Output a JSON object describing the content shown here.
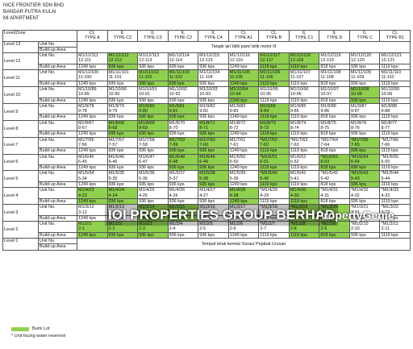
{
  "header": {
    "company": "NICE FRONTIER SDN BHD",
    "location": "BANDAR PUTRA KULAI",
    "project": "MI APARTMENT"
  },
  "table": {
    "corner": "Level/Zone",
    "row_labels": [
      "Unit No.",
      "Build-up Area"
    ],
    "columns": [
      [
        "CL",
        "TYPE A"
      ],
      [
        "IL",
        "TYPE C2"
      ],
      [
        "IL",
        "TYPE C3"
      ],
      [
        "IL",
        "TYPE C2"
      ],
      [
        "IL",
        "TYPE C4"
      ],
      [
        "CL",
        "TYPE A1"
      ],
      [
        "CL",
        "TYPE B"
      ],
      [
        "IL",
        "TYPE C1"
      ],
      [
        "IL",
        "TYPE D"
      ],
      [
        "IL",
        "TYPE C"
      ],
      [
        "CL",
        "TYPE B1"
      ]
    ],
    "top": {
      "level": "Level 13",
      "note": "Tangki air/ bilik pam/ bilik motor lif"
    },
    "levels": [
      {
        "level": "Level 12",
        "bumi": [
          false,
          true,
          false,
          false,
          false,
          false,
          true,
          true,
          false,
          false,
          false
        ],
        "cells": [
          [
            "M1/12/111",
            "12-111",
            "1249 kps"
          ],
          [
            "M1/12/112",
            "12-112",
            "936 kps"
          ],
          [
            "M1/12/113",
            "12-113",
            "936 kps"
          ],
          [
            "M1/12/114",
            "12-114",
            "936 kps"
          ],
          [
            "M1/12/115",
            "12-115",
            "936 kps"
          ],
          [
            "M1/12/116",
            "12-116",
            "1249 kps"
          ],
          [
            "M1/12/117",
            "12-117",
            "1119 kps"
          ],
          [
            "M1/12/118",
            "12-118",
            "1119 kps"
          ],
          [
            "M1/12/119",
            "12-119",
            "818 kps"
          ],
          [
            "M1/12/120",
            "12-120",
            "936 kps"
          ],
          [
            "M1/12/121",
            "12-121",
            "1119 kps"
          ]
        ]
      },
      {
        "level": "Level 11",
        "bumi": [
          false,
          false,
          true,
          true,
          false,
          true,
          true,
          false,
          false,
          false,
          false
        ],
        "cells": [
          [
            "M1/11/100",
            "11-100",
            "1249 kps"
          ],
          [
            "M1/11/101",
            "11-101",
            "936 kps"
          ],
          [
            "M1/11/102",
            "11-102",
            "936 kps"
          ],
          [
            "M1/11/103",
            "11-103",
            "936 kps"
          ],
          [
            "M1/11/104",
            "11-104",
            "936 kps"
          ],
          [
            "M1/11/105",
            "11-105",
            "1249 kps"
          ],
          [
            "M1/11/106",
            "11-106",
            "1119 kps"
          ],
          [
            "M1/11/107",
            "11-107",
            "1119 kps"
          ],
          [
            "M1/11/108",
            "11-108",
            "818 kps"
          ],
          [
            "M1/11/109",
            "11-109",
            "936 kps"
          ],
          [
            "M1/11/110",
            "11-110",
            "1119 kps"
          ]
        ]
      },
      {
        "level": "Level 10",
        "bumi": [
          false,
          false,
          false,
          false,
          false,
          true,
          false,
          false,
          false,
          true,
          false
        ],
        "cells": [
          [
            "M1/10/89",
            "10-89",
            "1249 kps"
          ],
          [
            "M1/10/90",
            "10-90",
            "936 kps"
          ],
          [
            "M1/10/91",
            "10-91",
            "936 kps"
          ],
          [
            "M1/10/92",
            "10-92",
            "936 kps"
          ],
          [
            "M1/10/93",
            "10-93",
            "936 kps"
          ],
          [
            "M1/10/94",
            "10-94",
            "1249 kps"
          ],
          [
            "M1/10/95",
            "10-95",
            "1119 kps"
          ],
          [
            "M1/10/96",
            "10-96",
            "1119 kps"
          ],
          [
            "M1/10/97",
            "10-97",
            "818 kps"
          ],
          [
            "M1/10/98",
            "10-98",
            "936 kps"
          ],
          [
            "M1/10/99",
            "10-99",
            "1119 kps"
          ]
        ]
      },
      {
        "level": "Level 9",
        "bumi": [
          false,
          false,
          true,
          true,
          false,
          false,
          true,
          false,
          false,
          false,
          false
        ],
        "cells": [
          [
            "M1/9/78",
            "9-78",
            "1249 kps"
          ],
          [
            "M1/9/79",
            "9-79",
            "936 kps"
          ],
          [
            "M1/9/80",
            "9-80",
            "936 kps"
          ],
          [
            "M1/9/81",
            "9-81",
            "936 kps"
          ],
          [
            "M1/9/82",
            "9-82",
            "936 kps"
          ],
          [
            "M1/9/83",
            "9-83",
            "1249 kps"
          ],
          [
            "M1/9/84",
            "9-84",
            "1119 kps"
          ],
          [
            "M1/9/85",
            "9-85",
            "1119 kps"
          ],
          [
            "M1/9/86",
            "9-86",
            "818 kps"
          ],
          [
            "M1/9/87",
            "9-87",
            "936 kps"
          ],
          [
            "M1/9/88",
            "9-88",
            "1119 kps"
          ]
        ]
      },
      {
        "level": "Level 8",
        "bumi": [
          false,
          true,
          true,
          false,
          true,
          false,
          true,
          false,
          false,
          false,
          false
        ],
        "cells": [
          [
            "M1/8/67",
            "8-67",
            "1249 kps"
          ],
          [
            "M1/8/68",
            "8-68",
            "936 kps"
          ],
          [
            "M1/8/69",
            "8-69",
            "936 kps"
          ],
          [
            "M1/8/70",
            "8-70",
            "936 kps"
          ],
          [
            "M1/8/71",
            "8-71",
            "936 kps"
          ],
          [
            "M1/8/72",
            "8-72",
            "1249 kps"
          ],
          [
            "M1/8/73",
            "8-73",
            "1119 kps"
          ],
          [
            "M1/8/74",
            "8-74",
            "1119 kps"
          ],
          [
            "M1/8/75",
            "8-75",
            "818 kps"
          ],
          [
            "M1/8/76",
            "8-76",
            "936 kps"
          ],
          [
            "M1/8/77",
            "8-77",
            "1119 kps"
          ]
        ]
      },
      {
        "level": "Level 7",
        "bumi": [
          false,
          false,
          false,
          true,
          true,
          false,
          true,
          false,
          false,
          true,
          false
        ],
        "cells": [
          [
            "M1/7/56",
            "7-56",
            "1249 kps"
          ],
          [
            "M1/7/57",
            "7-57",
            "936 kps"
          ],
          [
            "M1/7/58",
            "7-58",
            "936 kps"
          ],
          [
            "M1/7/59",
            "7-59",
            "936 kps"
          ],
          [
            "M1/7/60",
            "7-60",
            "936 kps"
          ],
          [
            "M1/7/61",
            "7-61",
            "1249 kps"
          ],
          [
            "*M1/7/62",
            "7-62",
            "1119 kps"
          ],
          [
            "*M1/7/63",
            "7-63",
            "1119 kps"
          ],
          [
            "*M1/7/64",
            "7-64",
            "818 kps"
          ],
          [
            "*M1/7/65",
            "7-65",
            "936 kps"
          ],
          [
            "*M1/7/66",
            "7-66",
            "1119 kps"
          ]
        ]
      },
      {
        "level": "Level 6",
        "bumi": [
          false,
          false,
          false,
          true,
          true,
          false,
          true,
          false,
          true,
          true,
          false
        ],
        "cells": [
          [
            "M1/6/45",
            "6-45",
            "1249 kps"
          ],
          [
            "M1/6/46",
            "6-46",
            "936 kps"
          ],
          [
            "M1/6/47",
            "6-47",
            "936 kps"
          ],
          [
            "M1/6/48",
            "6-48",
            "936 kps"
          ],
          [
            "M1/6/49",
            "6-49",
            "936 kps"
          ],
          [
            "M1/6/50",
            "6-50",
            "1249 kps"
          ],
          [
            "*M1/6/51",
            "6-51",
            "1119 kps"
          ],
          [
            "M1/6/52",
            "6-52",
            "1119 kps"
          ],
          [
            "*M1/6/53",
            "6-53",
            "818 kps"
          ],
          [
            "*M1/6/54",
            "6-54",
            "936 kps"
          ],
          [
            "*M1/6/55",
            "6-55",
            "1119 kps"
          ]
        ]
      },
      {
        "level": "Level 5",
        "bumi": [
          false,
          false,
          false,
          false,
          true,
          false,
          true,
          false,
          false,
          true,
          false
        ],
        "cells": [
          [
            "M1/5/34",
            "5-34",
            "1249 kps"
          ],
          [
            "M1/5/35",
            "5-35",
            "936 kps"
          ],
          [
            "M1/5/36",
            "5-36",
            "936 kps"
          ],
          [
            "M1/5/37",
            "5-37",
            "936 kps"
          ],
          [
            "M1/5/38",
            "5-38",
            "936 kps"
          ],
          [
            "M1/5/39",
            "5-39",
            "1249 kps"
          ],
          [
            "*M1/5/40",
            "5-40",
            "1119 kps"
          ],
          [
            "M1/5/41",
            "5-41",
            "1119 kps"
          ],
          [
            "*M1/5/42",
            "5-42",
            "818 kps"
          ],
          [
            "*M1/5/43",
            "5-43",
            "936 kps"
          ],
          [
            "*M1/5/44",
            "5-44",
            "1119 kps"
          ]
        ]
      },
      {
        "level": "Level 4",
        "bumi": [
          true,
          true,
          false,
          false,
          false,
          true,
          false,
          true,
          false,
          false,
          false
        ],
        "cells": [
          [
            "M1/4/23",
            "4-23",
            "1249 kps"
          ],
          [
            "M1/4/24",
            "4-24",
            "936 kps"
          ],
          [
            "M1/4/25",
            "4-25",
            "936 kps"
          ],
          [
            "M1/4/26",
            "4-26",
            "936 kps"
          ],
          [
            "M1/4/27",
            "4-27",
            "936 kps"
          ],
          [
            "M1/4/28",
            "4-28",
            "1249 kps"
          ],
          [
            "*M1/4/29",
            "4-29",
            "1119 kps"
          ],
          [
            "M1/4/30",
            "4-30",
            "1119 kps"
          ],
          [
            "*M1/4/31",
            "4-31",
            "818 kps"
          ],
          [
            "*M1/4/32",
            "4-32",
            "936 kps"
          ],
          [
            "*M1/4/33",
            "4-33",
            "1119 kps"
          ]
        ]
      },
      {
        "level": "Level 3",
        "bumi": [
          false,
          false,
          true,
          true,
          false,
          false,
          false,
          true,
          true,
          false,
          false
        ],
        "cells": [
          [
            "M1/3/12",
            "3-12",
            "1249 kps"
          ],
          [
            "M1/3/13",
            "3-13",
            "936 kps"
          ],
          [
            "M1/3/14",
            "3-14",
            "936 kps"
          ],
          [
            "M1/3/15",
            "3-15",
            "936 kps"
          ],
          [
            "M1/3/16",
            "3-16",
            "936 kps"
          ],
          [
            "M1/3/17",
            "3-17",
            "1249 kps"
          ],
          [
            "*M1/3/18",
            "3-18",
            "1119 kps"
          ],
          [
            "*M1/3/19",
            "3-19",
            "1119 kps"
          ],
          [
            "*M1/3/20",
            "3-20",
            "818 kps"
          ],
          [
            "*M1/3/21",
            "3-21",
            "936 kps"
          ],
          [
            "*M1/3/22",
            "3-22",
            "1119 kps"
          ]
        ]
      },
      {
        "level": "Level 2",
        "bumi": [
          true,
          true,
          true,
          false,
          false,
          false,
          false,
          true,
          true,
          false,
          false
        ],
        "cells": [
          [
            "M1/2/1",
            "2-1",
            "1249 kps"
          ],
          [
            "M1/2/2",
            "2-2",
            "936 kps"
          ],
          [
            "M1/2/3",
            "2-3",
            "936 kps"
          ],
          [
            "M1/2/4",
            "2-4",
            "936 kps"
          ],
          [
            "M1/2/5",
            "2-5",
            "936 kps"
          ],
          [
            "M1/2/6",
            "2-6",
            "1249 kps"
          ],
          [
            "*M1/2/7",
            "2-7",
            "1119 kps"
          ],
          [
            "*M1/2/8",
            "2-8",
            "1119 kps"
          ],
          [
            "*M1/2/9",
            "2-9",
            "818 kps"
          ],
          [
            "*M1/2/10",
            "2-10",
            "936 kps"
          ],
          [
            "*M1/2/11",
            "2-11",
            "1119 kps"
          ]
        ]
      }
    ],
    "bottom": {
      "level": "Level 1",
      "note": "Tempat letak kereta/ Surau/ Pejabat Urusan"
    }
  },
  "legend": {
    "bumi": "Bumi Lot",
    "star": "* Unit facing water reservoir"
  },
  "watermark": {
    "left": "IOI PROPERTIES GROUP BERHAD",
    "right": "PropertyGenie"
  }
}
